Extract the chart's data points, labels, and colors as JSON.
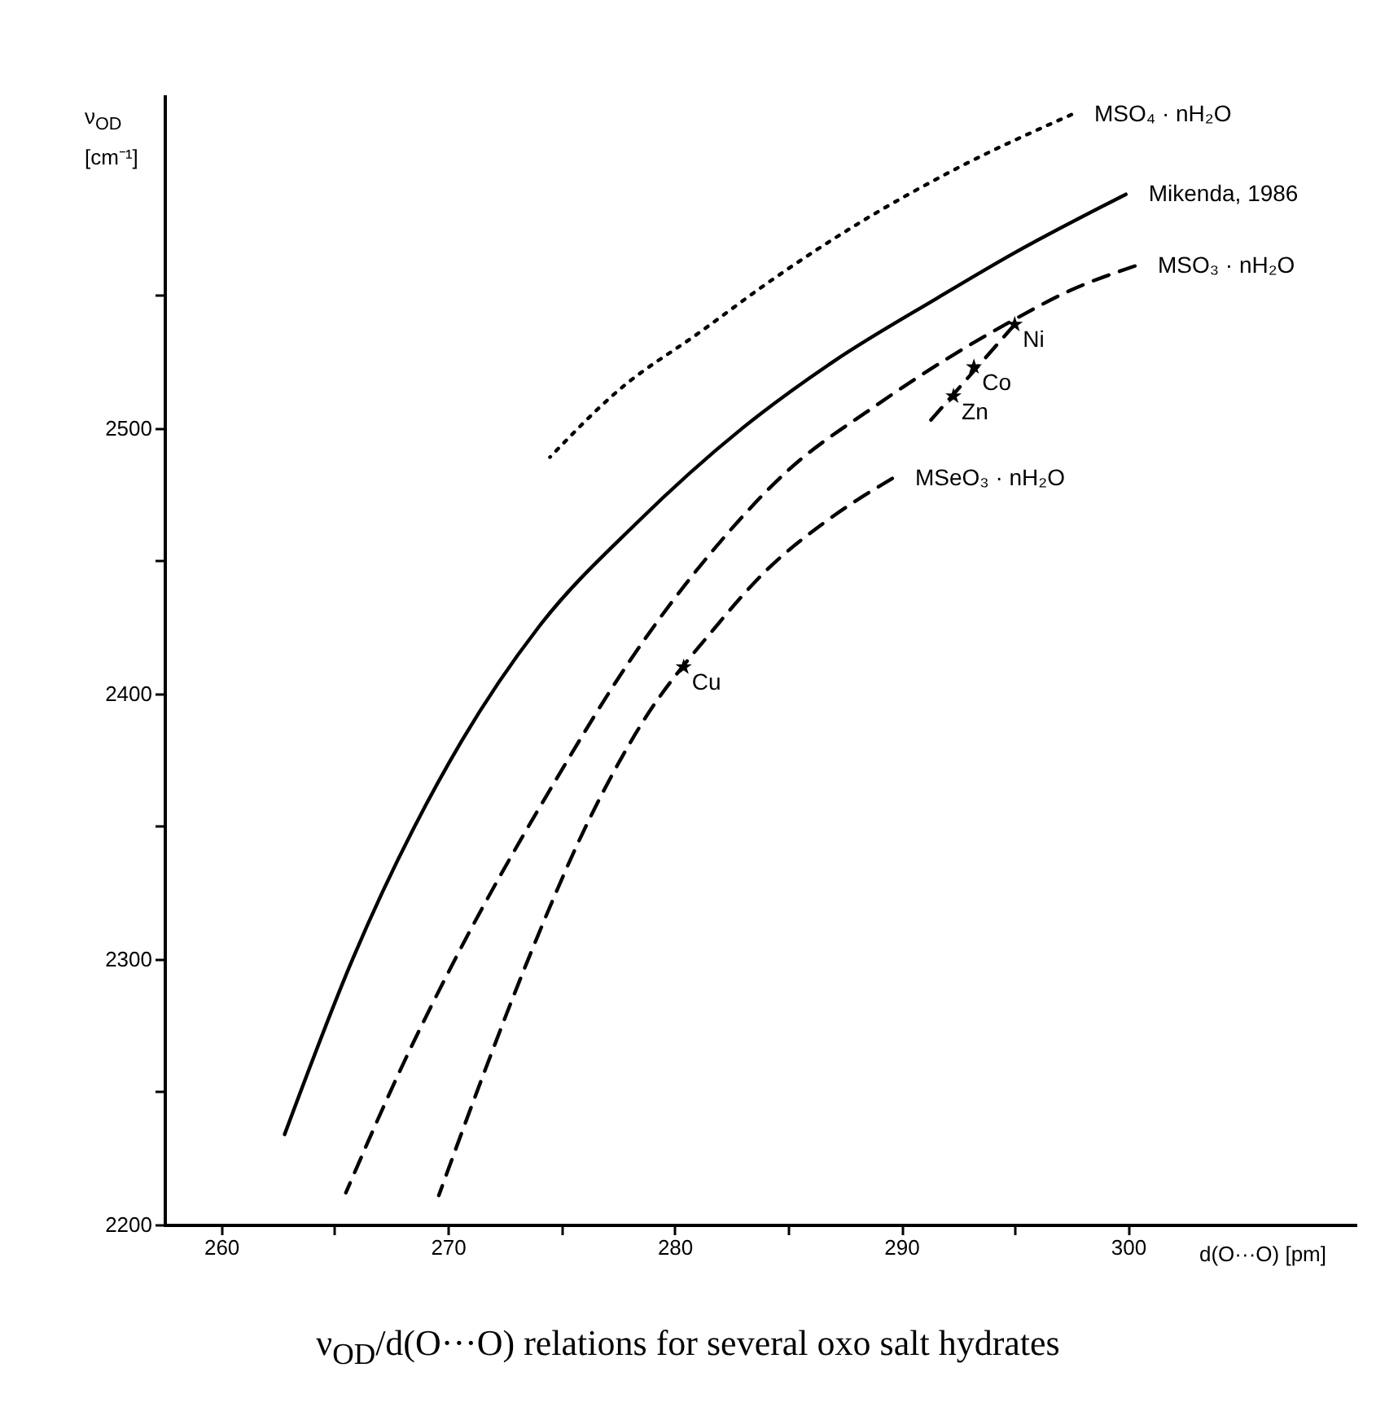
{
  "chart_data": {
    "type": "line",
    "title": "ν$_{OD}$/d(O···O) relations for several oxo salt hydrates",
    "xlabel": "d(O···O) [pm]",
    "ylabel": "ν$_{OD}$ [cm⁻¹]",
    "xlim": [
      257.5,
      310
    ],
    "ylim": [
      2200,
      2625
    ],
    "xticks": [
      260,
      {
        "value": 265,
        "label": null
      },
      270,
      {
        "value": 275,
        "label": null
      },
      280,
      {
        "value": 285,
        "label": null
      },
      290,
      {
        "value": 295,
        "label": null
      },
      300
    ],
    "yticks": [
      2200,
      {
        "value": 2250,
        "label": null
      },
      2300,
      {
        "value": 2350,
        "label": null
      },
      2400,
      {
        "value": 2450,
        "label": null
      },
      2500,
      {
        "value": 2550,
        "label": null
      }
    ],
    "grid": false,
    "series": [
      {
        "name": "MSO₄ · nH₂O",
        "color": "#000000",
        "line_style": "dotted",
        "x": [
          274.5,
          277.5,
          281.1,
          284.5,
          288.1,
          292.5,
          297.5
        ],
        "values": [
          2489,
          2514,
          2536,
          2557,
          2577,
          2598,
          2618
        ]
      },
      {
        "name": "Mikenda, 1986",
        "color": "#000000",
        "line_style": "solid",
        "x": [
          262.8,
          265.8,
          270.6,
          274,
          278.3,
          283,
          287,
          291.6,
          295,
          299.9
        ],
        "values": [
          2234,
          2300,
          2382,
          2425,
          2464,
          2500,
          2525,
          2549,
          2566,
          2588
        ]
      },
      {
        "name": "MSO₃ · nH₂O",
        "color": "#000000",
        "line_style": "dashed",
        "x": [
          265.5,
          268,
          270.2,
          274.8,
          278,
          281.8,
          285,
          288.8,
          292,
          294.8,
          297.5,
          300.3
        ],
        "values": [
          2212,
          2260,
          2298,
          2368,
          2412,
          2455,
          2484,
          2508,
          2526,
          2540,
          2552,
          2561
        ]
      },
      {
        "name": "MSeO₃ · nH₂O",
        "color": "#000000",
        "line_style": "dashed",
        "x": [
          269.6,
          271.5,
          273.5,
          276.2,
          278.5,
          281.8,
          284,
          286.7,
          289.6
        ],
        "values": [
          2211,
          2255,
          2299,
          2352,
          2388,
          2425,
          2446,
          2465,
          2481
        ]
      },
      {
        "type": "line",
        "color": "#000000",
        "line_style": "dashed",
        "x": [
          291.2,
          295
        ],
        "values": [
          2502,
          2539
        ]
      },
      {
        "type": "scatter",
        "color": "#000000",
        "marker": "star",
        "x": [
          292.3,
          293.2,
          295,
          280.4
        ],
        "values": [
          2512,
          2523,
          2539,
          2410
        ]
      }
    ],
    "annotations": [
      {
        "text": "Ni",
        "x": 295,
        "y": 2539
      },
      {
        "text": "Co",
        "x": 293.2,
        "y": 2523
      },
      {
        "text": "Zn",
        "x": 292.3,
        "y": 2512
      },
      {
        "text": "Cu",
        "x": 280.4,
        "y": 2410
      }
    ]
  }
}
